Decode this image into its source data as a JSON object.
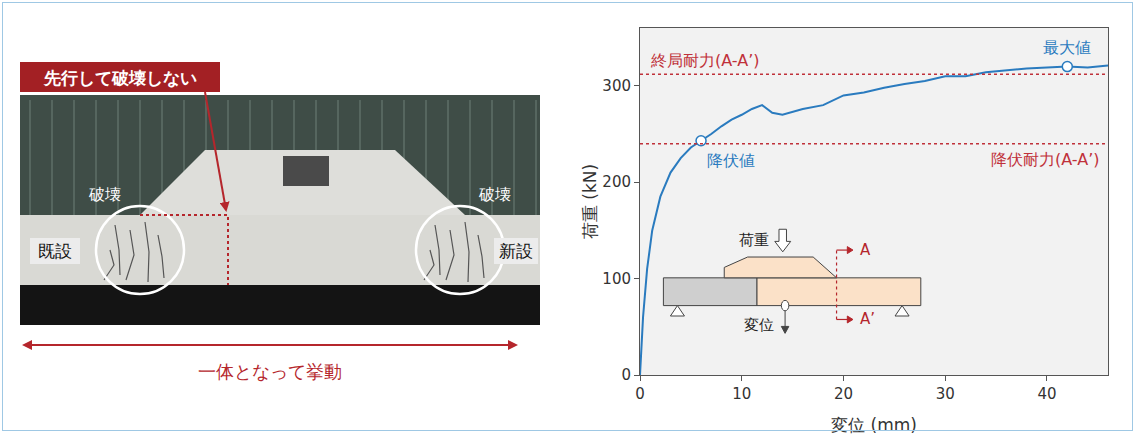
{
  "chart_data": {
    "type": "line",
    "x_label": "変位 (mm)",
    "y_label": "荷重 (kN)",
    "color": "#2a7bbf",
    "x": [
      0,
      0.3,
      0.7,
      1.2,
      2,
      3,
      4,
      5,
      6,
      7,
      8,
      9,
      10,
      11,
      12,
      13,
      14,
      16,
      18,
      20,
      22,
      24,
      26,
      28,
      30,
      32,
      34,
      36,
      38,
      40,
      42,
      44,
      46
    ],
    "values": [
      0,
      60,
      110,
      150,
      185,
      210,
      225,
      236,
      243,
      250,
      258,
      265,
      270,
      276,
      280,
      272,
      270,
      276,
      280,
      290,
      293,
      298,
      302,
      305,
      310,
      310,
      314,
      316,
      318,
      319,
      320,
      319,
      321
    ],
    "xlim": [
      0,
      46
    ],
    "ylim": [
      0,
      360
    ],
    "xticks": [
      0,
      10,
      20,
      30,
      40
    ],
    "yticks": [
      0,
      100,
      200,
      300
    ],
    "grid": false,
    "reference_lines": [
      {
        "label": "終局耐力(A-A’)",
        "value": 312,
        "color": "#c0313a"
      },
      {
        "label": "降伏耐力(A-A’)",
        "value": 240,
        "color": "#c0313a"
      }
    ],
    "points": [
      {
        "label": "降伏値",
        "x": 6,
        "y": 243
      },
      {
        "label": "最大値",
        "x": 42,
        "y": 320
      }
    ],
    "inset": {
      "load_label": "荷重",
      "displacement_label": "変位",
      "section_labels": [
        "A",
        "A’"
      ]
    }
  },
  "photo": {
    "callout": "先行して破壊しない",
    "failure_labels": [
      "破壊",
      "破壊"
    ],
    "existing_label": "既設",
    "new_label": "新設",
    "caption": "一体となって挙動"
  }
}
